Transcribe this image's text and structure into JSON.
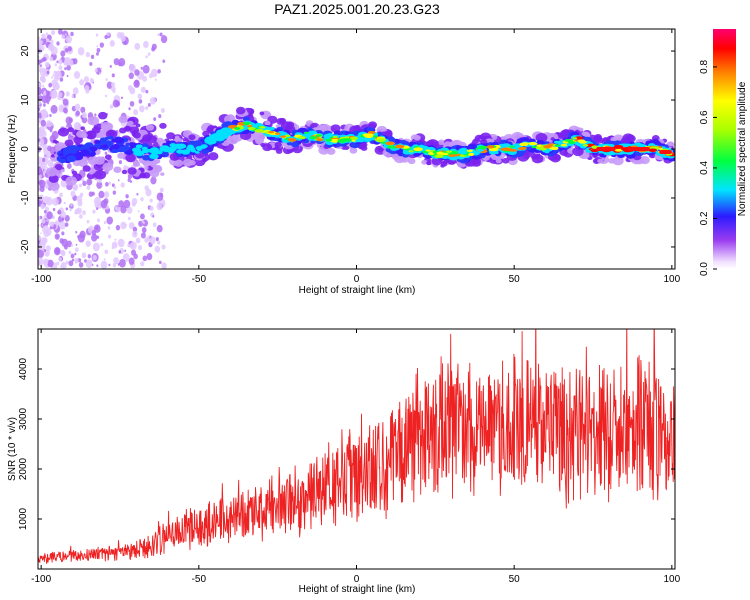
{
  "title": "PAZ1.2025.001.20.23.G23",
  "chart_data": [
    {
      "type": "heatmap",
      "xlabel": "Height of straight line (km)",
      "ylabel": "Frequency (Hz)",
      "xlim": [
        -101,
        101
      ],
      "ylim": [
        -24.5,
        24.5
      ],
      "xticks": [
        "-100",
        "-50",
        "0",
        "50",
        "100"
      ],
      "yticks": [
        "20",
        "10",
        "0",
        "-10",
        "-20"
      ],
      "ridge_frequency": {
        "x": [
          -97,
          -90,
          -85,
          -80,
          -75,
          -70,
          -65,
          -60,
          -55,
          -50,
          -45,
          -40,
          -35,
          -30,
          -25,
          -20,
          -15,
          -10,
          -5,
          0,
          5,
          10,
          15,
          20,
          25,
          30,
          35,
          40,
          45,
          50,
          55,
          60,
          65,
          70,
          75,
          80,
          85,
          90,
          95,
          100
        ],
        "y": [
          -2,
          -1,
          0,
          1,
          1,
          0,
          -1,
          0,
          0,
          0,
          2,
          4,
          5,
          4,
          3,
          2,
          3,
          2,
          2,
          2,
          3,
          1,
          0,
          0,
          -1,
          -1,
          -1,
          0,
          0,
          0,
          1,
          0,
          1,
          2,
          0,
          0,
          0,
          0,
          0,
          -1
        ]
      },
      "colorbar": {
        "label": "Normalized spectral amplitude",
        "range": [
          0,
          0.95
        ],
        "ticks": [
          "0.0",
          "0.2",
          "0.4",
          "0.6",
          "0.8"
        ]
      }
    },
    {
      "type": "line",
      "xlabel": "Height of straight line (km)",
      "ylabel": "SNR (10 * v/v)",
      "xlim": [
        -101,
        101
      ],
      "ylim": [
        0,
        4800
      ],
      "xticks": [
        "-100",
        "-50",
        "0",
        "50",
        "100"
      ],
      "yticks": [
        "1000",
        "2000",
        "3000",
        "4000"
      ],
      "color": "#ee2222",
      "series": [
        {
          "x": [
            -100,
            -95,
            -90,
            -85,
            -80,
            -75,
            -70,
            -65,
            -60,
            -55,
            -50,
            -45,
            -40,
            -35,
            -30,
            -25,
            -20,
            -15,
            -10,
            -5,
            0,
            5,
            10,
            15,
            20,
            25,
            30,
            35,
            40,
            45,
            50,
            55,
            60,
            65,
            70,
            75,
            80,
            85,
            90,
            95,
            100
          ],
          "values": [
            200,
            250,
            260,
            280,
            300,
            320,
            400,
            500,
            650,
            800,
            850,
            950,
            1000,
            1050,
            1150,
            1200,
            1300,
            1450,
            1600,
            1800,
            1900,
            2000,
            2200,
            2450,
            2650,
            2750,
            2750,
            2800,
            2800,
            2800,
            2850,
            2800,
            2800,
            2750,
            2700,
            2750,
            2700,
            2750,
            2800,
            2800,
            2750
          ]
        }
      ]
    }
  ]
}
